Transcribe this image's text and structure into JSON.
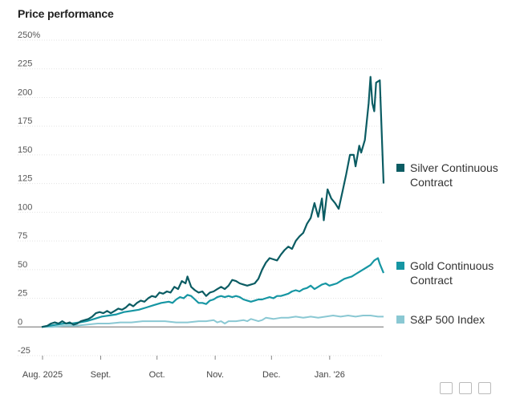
{
  "header": {
    "title": "Price performance"
  },
  "chart_data": {
    "type": "line",
    "title": "Price performance",
    "y_unit": "%",
    "ylim": [
      -25,
      250
    ],
    "yticks": [
      {
        "value": 250,
        "label": "250%"
      },
      {
        "value": 225,
        "label": "225"
      },
      {
        "value": 200,
        "label": "200"
      },
      {
        "value": 175,
        "label": "175"
      },
      {
        "value": 150,
        "label": "150"
      },
      {
        "value": 125,
        "label": "125"
      },
      {
        "value": 100,
        "label": "100"
      },
      {
        "value": 75,
        "label": "75"
      },
      {
        "value": 50,
        "label": "50"
      },
      {
        "value": 25,
        "label": "25"
      },
      {
        "value": 0,
        "label": "0"
      },
      {
        "value": -25,
        "label": "-25"
      }
    ],
    "x_range_days": [
      0,
      177
    ],
    "xticks": [
      {
        "day": 0,
        "label": "Aug. 2025"
      },
      {
        "day": 31,
        "label": "Sept."
      },
      {
        "day": 61,
        "label": "Oct."
      },
      {
        "day": 92,
        "label": "Nov."
      },
      {
        "day": 122,
        "label": "Dec."
      },
      {
        "day": 153,
        "label": "Jan. '26"
      }
    ],
    "series": [
      {
        "name": "Silver Continuous Contract",
        "color": "#0b5c63",
        "points": [
          [
            0,
            0
          ],
          [
            3,
            1
          ],
          [
            5,
            3
          ],
          [
            7,
            4
          ],
          [
            9,
            3
          ],
          [
            11,
            5
          ],
          [
            13,
            3
          ],
          [
            15,
            4
          ],
          [
            17,
            2
          ],
          [
            19,
            3
          ],
          [
            21,
            5
          ],
          [
            23,
            6
          ],
          [
            25,
            7
          ],
          [
            27,
            9
          ],
          [
            29,
            12
          ],
          [
            31,
            13
          ],
          [
            33,
            12
          ],
          [
            35,
            14
          ],
          [
            37,
            12
          ],
          [
            39,
            14
          ],
          [
            41,
            16
          ],
          [
            43,
            15
          ],
          [
            45,
            17
          ],
          [
            47,
            20
          ],
          [
            49,
            18
          ],
          [
            51,
            21
          ],
          [
            53,
            23
          ],
          [
            55,
            22
          ],
          [
            57,
            25
          ],
          [
            59,
            27
          ],
          [
            61,
            26
          ],
          [
            63,
            30
          ],
          [
            65,
            29
          ],
          [
            67,
            31
          ],
          [
            69,
            30
          ],
          [
            71,
            35
          ],
          [
            73,
            33
          ],
          [
            75,
            40
          ],
          [
            77,
            38
          ],
          [
            78,
            44
          ],
          [
            80,
            35
          ],
          [
            82,
            32
          ],
          [
            84,
            30
          ],
          [
            86,
            31
          ],
          [
            88,
            27
          ],
          [
            90,
            30
          ],
          [
            92,
            31
          ],
          [
            94,
            33
          ],
          [
            96,
            35
          ],
          [
            98,
            33
          ],
          [
            100,
            36
          ],
          [
            102,
            41
          ],
          [
            104,
            40
          ],
          [
            106,
            38
          ],
          [
            108,
            37
          ],
          [
            110,
            36
          ],
          [
            112,
            37
          ],
          [
            114,
            38
          ],
          [
            116,
            42
          ],
          [
            118,
            50
          ],
          [
            120,
            56
          ],
          [
            122,
            60
          ],
          [
            124,
            59
          ],
          [
            126,
            58
          ],
          [
            128,
            63
          ],
          [
            130,
            67
          ],
          [
            132,
            70
          ],
          [
            134,
            68
          ],
          [
            136,
            75
          ],
          [
            138,
            79
          ],
          [
            140,
            82
          ],
          [
            142,
            90
          ],
          [
            144,
            95
          ],
          [
            146,
            108
          ],
          [
            148,
            96
          ],
          [
            150,
            112
          ],
          [
            151,
            93
          ],
          [
            153,
            120
          ],
          [
            155,
            112
          ],
          [
            157,
            108
          ],
          [
            159,
            103
          ],
          [
            161,
            118
          ],
          [
            163,
            133
          ],
          [
            165,
            150
          ],
          [
            167,
            150
          ],
          [
            168,
            140
          ],
          [
            170,
            158
          ],
          [
            171,
            152
          ],
          [
            173,
            163
          ],
          [
            175,
            195
          ],
          [
            176,
            218
          ],
          [
            177,
            195
          ],
          [
            178,
            188
          ],
          [
            179,
            213
          ],
          [
            181,
            215
          ],
          [
            183,
            125
          ]
        ]
      },
      {
        "name": "Gold Continuous Contract",
        "color": "#1696a3",
        "points": [
          [
            0,
            0
          ],
          [
            4,
            1
          ],
          [
            8,
            2
          ],
          [
            12,
            3
          ],
          [
            16,
            3
          ],
          [
            20,
            4
          ],
          [
            24,
            5
          ],
          [
            28,
            7
          ],
          [
            32,
            9
          ],
          [
            36,
            10
          ],
          [
            40,
            11
          ],
          [
            44,
            13
          ],
          [
            48,
            14
          ],
          [
            52,
            15
          ],
          [
            56,
            17
          ],
          [
            60,
            19
          ],
          [
            64,
            21
          ],
          [
            68,
            22
          ],
          [
            70,
            21
          ],
          [
            72,
            24
          ],
          [
            74,
            26
          ],
          [
            76,
            25
          ],
          [
            78,
            28
          ],
          [
            80,
            27
          ],
          [
            82,
            24
          ],
          [
            84,
            21
          ],
          [
            86,
            21
          ],
          [
            88,
            20
          ],
          [
            90,
            23
          ],
          [
            92,
            24
          ],
          [
            94,
            26
          ],
          [
            96,
            27
          ],
          [
            98,
            26
          ],
          [
            100,
            27
          ],
          [
            102,
            26
          ],
          [
            104,
            27
          ],
          [
            106,
            26
          ],
          [
            108,
            24
          ],
          [
            110,
            23
          ],
          [
            112,
            22
          ],
          [
            114,
            23
          ],
          [
            116,
            24
          ],
          [
            118,
            24
          ],
          [
            120,
            25
          ],
          [
            122,
            26
          ],
          [
            124,
            25
          ],
          [
            126,
            27
          ],
          [
            128,
            27
          ],
          [
            130,
            28
          ],
          [
            132,
            29
          ],
          [
            134,
            31
          ],
          [
            136,
            32
          ],
          [
            138,
            31
          ],
          [
            140,
            33
          ],
          [
            142,
            34
          ],
          [
            144,
            36
          ],
          [
            146,
            33
          ],
          [
            148,
            35
          ],
          [
            150,
            37
          ],
          [
            152,
            38
          ],
          [
            154,
            36
          ],
          [
            156,
            37
          ],
          [
            158,
            38
          ],
          [
            160,
            40
          ],
          [
            162,
            42
          ],
          [
            164,
            43
          ],
          [
            166,
            44
          ],
          [
            168,
            46
          ],
          [
            170,
            48
          ],
          [
            172,
            50
          ],
          [
            174,
            52
          ],
          [
            176,
            54
          ],
          [
            178,
            58
          ],
          [
            180,
            60
          ],
          [
            181,
            55
          ],
          [
            183,
            47
          ]
        ]
      },
      {
        "name": "S&P 500 Index",
        "color": "#8ac8d3",
        "points": [
          [
            0,
            0
          ],
          [
            6,
            0
          ],
          [
            12,
            1
          ],
          [
            18,
            1
          ],
          [
            24,
            2
          ],
          [
            30,
            3
          ],
          [
            36,
            3
          ],
          [
            42,
            4
          ],
          [
            48,
            4
          ],
          [
            54,
            5
          ],
          [
            60,
            5
          ],
          [
            66,
            5
          ],
          [
            72,
            4
          ],
          [
            78,
            4
          ],
          [
            84,
            5
          ],
          [
            88,
            5
          ],
          [
            92,
            6
          ],
          [
            94,
            4
          ],
          [
            96,
            5
          ],
          [
            98,
            3
          ],
          [
            100,
            5
          ],
          [
            104,
            5
          ],
          [
            108,
            6
          ],
          [
            110,
            5
          ],
          [
            112,
            7
          ],
          [
            114,
            6
          ],
          [
            116,
            5
          ],
          [
            118,
            6
          ],
          [
            120,
            8
          ],
          [
            124,
            7
          ],
          [
            128,
            8
          ],
          [
            132,
            8
          ],
          [
            136,
            9
          ],
          [
            140,
            8
          ],
          [
            144,
            9
          ],
          [
            148,
            8
          ],
          [
            152,
            9
          ],
          [
            156,
            10
          ],
          [
            160,
            9
          ],
          [
            164,
            10
          ],
          [
            168,
            9
          ],
          [
            172,
            10
          ],
          [
            176,
            10
          ],
          [
            180,
            9
          ],
          [
            183,
            9
          ]
        ]
      }
    ]
  },
  "legend": [
    {
      "label": "Silver Continuous Contract",
      "color": "#0b5c63"
    },
    {
      "label": "Gold Continuous Contract",
      "color": "#1696a3"
    },
    {
      "label": "S&P 500 Index",
      "color": "#8ac8d3"
    }
  ]
}
